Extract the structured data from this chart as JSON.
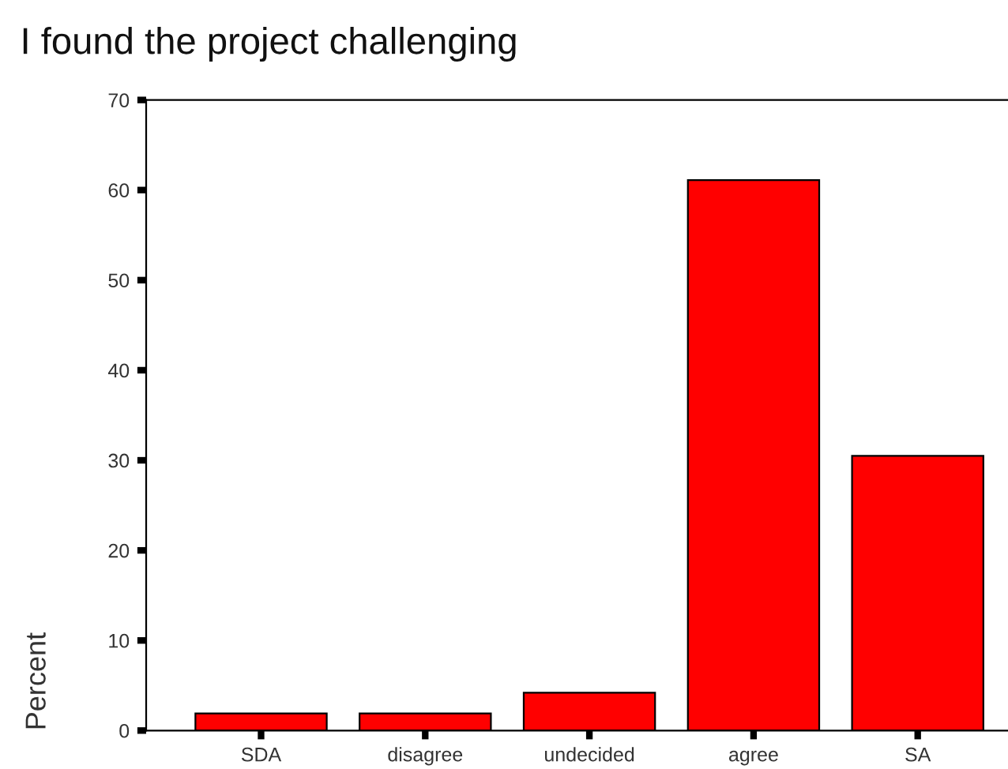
{
  "chart_data": {
    "type": "bar",
    "title": "I found the project challenging",
    "ylabel": "Percent",
    "categories": [
      "SDA",
      "disagree",
      "undecided",
      "agree",
      "SA"
    ],
    "values": [
      1.9,
      1.9,
      4.2,
      61.1,
      30.5
    ],
    "color": "#ff0000",
    "ylim": [
      0,
      70
    ],
    "yticks": [
      0,
      10,
      20,
      30,
      40,
      50,
      60,
      70
    ],
    "grid": false,
    "legend": false
  }
}
